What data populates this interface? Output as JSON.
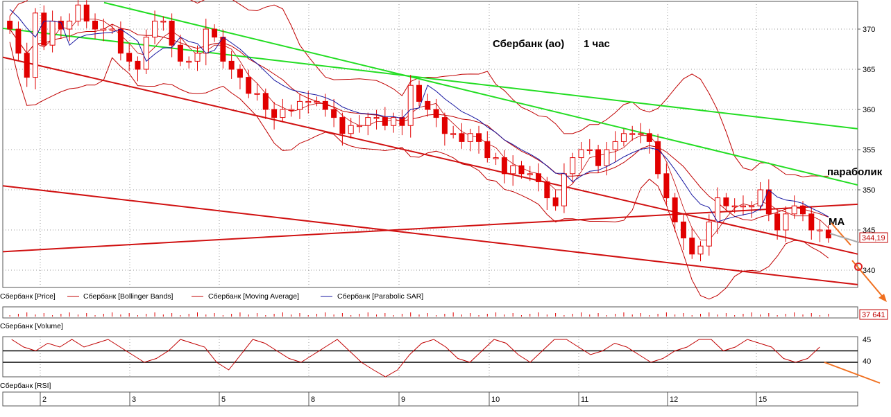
{
  "chart_data": {
    "type": "candlestick",
    "title": "Сбербанк (ао)",
    "timeframe": "1 час",
    "annotations": {
      "parabolic": "параболик",
      "ma": "MA"
    },
    "price_axis": {
      "ylim": [
        336,
        373
      ],
      "ticks": [
        340,
        345,
        350,
        355,
        360,
        365,
        370
      ]
    },
    "last_price_label": "344,19",
    "x_day_labels": [
      "2",
      "3",
      "5",
      "8",
      "9",
      "10",
      "11",
      "12",
      "15"
    ],
    "legend": {
      "price": "Сбербанк [Price]",
      "bollinger": "Сбербанк [Bollinger Bands]",
      "moving_average": "Сбербанк [Moving Average]",
      "parabolic_sar": "Сбербанк [Parabolic SAR]",
      "volume": "Сбербанк [Volume]",
      "rsi": "Сбербанк [RSI]"
    },
    "volume_label": "37 641",
    "rsi_axis": {
      "ticks": [
        45,
        40
      ],
      "ylim": [
        36,
        46
      ],
      "level_lines": [
        43,
        40
      ]
    },
    "series": [
      {
        "name": "Сбербанк [Price]",
        "close": [
          370,
          367,
          364,
          372,
          368,
          371,
          370,
          371,
          373,
          371,
          370,
          370,
          370,
          367,
          366,
          365,
          369,
          371,
          371,
          368,
          366,
          366,
          367,
          370,
          369,
          366,
          365,
          364,
          362,
          362,
          360,
          359,
          360,
          360,
          361,
          361,
          361,
          360,
          359,
          357,
          358,
          358,
          359,
          359,
          358,
          359,
          358,
          363,
          361,
          360,
          359,
          357,
          357,
          356,
          357,
          356,
          354,
          354,
          352,
          353,
          352,
          352,
          351,
          349,
          348,
          352,
          354,
          355,
          355,
          353,
          355,
          356,
          357,
          357,
          357,
          356,
          352,
          349,
          346,
          344,
          342,
          343,
          346,
          349,
          348,
          348,
          348,
          348,
          350,
          347,
          345,
          347,
          348,
          347,
          345,
          345,
          344
        ]
      },
      {
        "name": "Сбербанк [Moving Average]"
      },
      {
        "name": "Сбербанк [Bollinger Bands]"
      },
      {
        "name": "Сбербанк [Parabolic SAR]"
      }
    ],
    "rsi": [
      46,
      44,
      43,
      45,
      44,
      46,
      44,
      45,
      46,
      44,
      42,
      40,
      41,
      43,
      46,
      45,
      44,
      40,
      38,
      42,
      46,
      45,
      43,
      41,
      40,
      42,
      44,
      46,
      43,
      40,
      38,
      36,
      38,
      42,
      45,
      46,
      44,
      41,
      40,
      43,
      46,
      45,
      42,
      40,
      43,
      46,
      46,
      44,
      42,
      43,
      45,
      44,
      42,
      40,
      41,
      43,
      44,
      46,
      46,
      43,
      44,
      46,
      45,
      44,
      41,
      40,
      41,
      44
    ],
    "colors": {
      "candle": "#e10000",
      "bands": "#c00000",
      "sar": "#1515a0",
      "trend_red": "#d01010",
      "trend_green": "#22dd22",
      "arrow": "#f07020",
      "grid": "#9a9a9a"
    }
  }
}
